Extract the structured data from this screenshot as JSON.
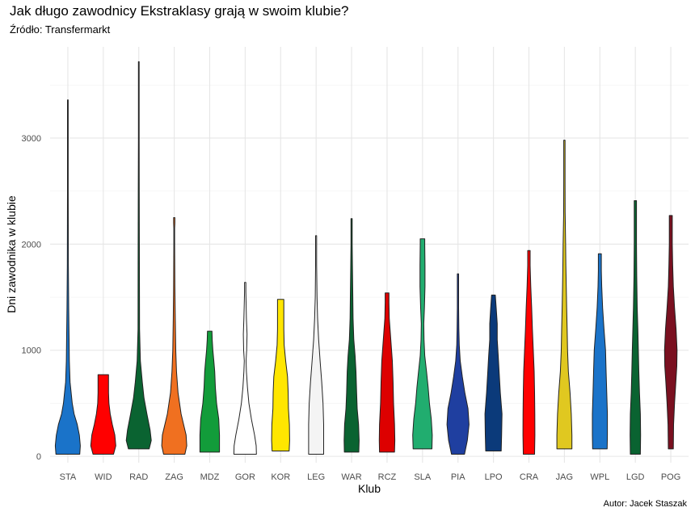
{
  "chart_data": {
    "type": "violin",
    "title": "Jak długo zawodnicy Ekstraklasy grają w swoim klubie?",
    "subtitle": "Źródło: Transfermarkt",
    "caption": "Autor: Jacek Staszak",
    "xlabel": "Klub",
    "ylabel": "Dni zawodnika w klubie",
    "ylim": [
      -60,
      3860
    ],
    "yticks": [
      0,
      1000,
      2000,
      3000
    ],
    "grid": true,
    "categories": [
      "STA",
      "WID",
      "RAD",
      "ZAG",
      "MDZ",
      "GOR",
      "KOR",
      "LEG",
      "WAR",
      "RCZ",
      "SLA",
      "PIA",
      "LPO",
      "CRA",
      "JAG",
      "WPL",
      "LGD",
      "POG"
    ],
    "series": [
      {
        "category": "STA",
        "color": "#1a73c9",
        "min": 20,
        "max": 3360,
        "profile": [
          [
            20,
            0.95
          ],
          [
            100,
            1.0
          ],
          [
            200,
            0.92
          ],
          [
            300,
            0.75
          ],
          [
            400,
            0.5
          ],
          [
            500,
            0.35
          ],
          [
            700,
            0.18
          ],
          [
            900,
            0.12
          ],
          [
            1100,
            0.1
          ],
          [
            1400,
            0.07
          ],
          [
            1800,
            0.04
          ],
          [
            2500,
            0.03
          ],
          [
            3000,
            0.03
          ],
          [
            3360,
            0.03
          ]
        ]
      },
      {
        "category": "WID",
        "color": "#ff0000",
        "min": 20,
        "max": 770,
        "profile": [
          [
            20,
            0.82
          ],
          [
            100,
            1.0
          ],
          [
            200,
            0.92
          ],
          [
            300,
            0.72
          ],
          [
            400,
            0.55
          ],
          [
            500,
            0.45
          ],
          [
            600,
            0.42
          ],
          [
            700,
            0.42
          ],
          [
            770,
            0.42
          ]
        ]
      },
      {
        "category": "RAD",
        "color": "#0a6331",
        "min": 70,
        "max": 3720,
        "profile": [
          [
            70,
            0.83
          ],
          [
            150,
            1.0
          ],
          [
            250,
            0.9
          ],
          [
            400,
            0.65
          ],
          [
            550,
            0.42
          ],
          [
            700,
            0.28
          ],
          [
            900,
            0.13
          ],
          [
            1200,
            0.06
          ],
          [
            1800,
            0.05
          ],
          [
            2500,
            0.04
          ],
          [
            3000,
            0.03
          ],
          [
            3720,
            0.03
          ]
        ]
      },
      {
        "category": "ZAG",
        "color": "#f07020",
        "min": 20,
        "max": 2250,
        "profile": [
          [
            20,
            0.85
          ],
          [
            100,
            1.0
          ],
          [
            200,
            0.95
          ],
          [
            300,
            0.75
          ],
          [
            400,
            0.55
          ],
          [
            600,
            0.3
          ],
          [
            800,
            0.18
          ],
          [
            1000,
            0.12
          ],
          [
            1300,
            0.08
          ],
          [
            1600,
            0.05
          ],
          [
            2000,
            0.03
          ],
          [
            2150,
            0.03
          ],
          [
            2200,
            0.05
          ],
          [
            2250,
            0.05
          ]
        ]
      },
      {
        "category": "MDZ",
        "color": "#129c3a",
        "min": 40,
        "max": 1180,
        "profile": [
          [
            40,
            0.78
          ],
          [
            200,
            0.78
          ],
          [
            350,
            0.72
          ],
          [
            500,
            0.55
          ],
          [
            650,
            0.45
          ],
          [
            800,
            0.4
          ],
          [
            900,
            0.33
          ],
          [
            1000,
            0.25
          ],
          [
            1100,
            0.2
          ],
          [
            1180,
            0.18
          ]
        ]
      },
      {
        "category": "GOR",
        "color": "#ffffff",
        "min": 20,
        "max": 1640,
        "profile": [
          [
            20,
            0.9
          ],
          [
            100,
            0.88
          ],
          [
            200,
            0.75
          ],
          [
            350,
            0.5
          ],
          [
            500,
            0.3
          ],
          [
            650,
            0.18
          ],
          [
            800,
            0.1
          ],
          [
            900,
            0.07
          ],
          [
            1000,
            0.12
          ],
          [
            1150,
            0.15
          ],
          [
            1300,
            0.1
          ],
          [
            1450,
            0.07
          ],
          [
            1550,
            0.05
          ],
          [
            1640,
            0.05
          ]
        ]
      },
      {
        "category": "KOR",
        "color": "#ffe600",
        "min": 50,
        "max": 1480,
        "profile": [
          [
            50,
            0.68
          ],
          [
            150,
            0.72
          ],
          [
            300,
            0.7
          ],
          [
            450,
            0.62
          ],
          [
            600,
            0.6
          ],
          [
            750,
            0.55
          ],
          [
            900,
            0.4
          ],
          [
            1050,
            0.28
          ],
          [
            1200,
            0.25
          ],
          [
            1350,
            0.25
          ],
          [
            1480,
            0.25
          ]
        ]
      },
      {
        "category": "LEG",
        "color": "#f4f4f4",
        "min": 20,
        "max": 2080,
        "profile": [
          [
            20,
            0.6
          ],
          [
            150,
            0.6
          ],
          [
            300,
            0.6
          ],
          [
            500,
            0.55
          ],
          [
            700,
            0.45
          ],
          [
            900,
            0.32
          ],
          [
            1100,
            0.2
          ],
          [
            1300,
            0.12
          ],
          [
            1500,
            0.07
          ],
          [
            1800,
            0.04
          ],
          [
            2080,
            0.04
          ]
        ]
      },
      {
        "category": "WAR",
        "color": "#0a6331",
        "min": 40,
        "max": 2240,
        "profile": [
          [
            40,
            0.58
          ],
          [
            150,
            0.6
          ],
          [
            300,
            0.56
          ],
          [
            450,
            0.45
          ],
          [
            600,
            0.4
          ],
          [
            800,
            0.35
          ],
          [
            950,
            0.28
          ],
          [
            1100,
            0.18
          ],
          [
            1300,
            0.12
          ],
          [
            1500,
            0.1
          ],
          [
            1800,
            0.07
          ],
          [
            2000,
            0.05
          ],
          [
            2240,
            0.05
          ]
        ]
      },
      {
        "category": "RCZ",
        "color": "#dd0000",
        "min": 40,
        "max": 1540,
        "profile": [
          [
            40,
            0.6
          ],
          [
            150,
            0.62
          ],
          [
            300,
            0.6
          ],
          [
            500,
            0.52
          ],
          [
            700,
            0.48
          ],
          [
            900,
            0.42
          ],
          [
            1100,
            0.3
          ],
          [
            1300,
            0.18
          ],
          [
            1450,
            0.15
          ],
          [
            1540,
            0.15
          ]
        ]
      },
      {
        "category": "SLA",
        "color": "#21ad6f",
        "min": 70,
        "max": 2050,
        "profile": [
          [
            70,
            0.75
          ],
          [
            200,
            0.78
          ],
          [
            350,
            0.7
          ],
          [
            500,
            0.55
          ],
          [
            650,
            0.45
          ],
          [
            800,
            0.32
          ],
          [
            950,
            0.18
          ],
          [
            1100,
            0.12
          ],
          [
            1250,
            0.1
          ],
          [
            1400,
            0.15
          ],
          [
            1600,
            0.2
          ],
          [
            1800,
            0.2
          ],
          [
            2000,
            0.18
          ],
          [
            2050,
            0.18
          ]
        ]
      },
      {
        "category": "PIA",
        "color": "#1f3fa0",
        "min": 20,
        "max": 1720,
        "profile": [
          [
            20,
            0.52
          ],
          [
            150,
            0.75
          ],
          [
            300,
            0.88
          ],
          [
            450,
            0.8
          ],
          [
            600,
            0.55
          ],
          [
            750,
            0.35
          ],
          [
            900,
            0.18
          ],
          [
            1050,
            0.1
          ],
          [
            1200,
            0.07
          ],
          [
            1400,
            0.05
          ],
          [
            1600,
            0.05
          ],
          [
            1720,
            0.05
          ]
        ]
      },
      {
        "category": "LPO",
        "color": "#0b3a7a",
        "min": 50,
        "max": 1520,
        "profile": [
          [
            50,
            0.62
          ],
          [
            200,
            0.65
          ],
          [
            400,
            0.68
          ],
          [
            600,
            0.55
          ],
          [
            800,
            0.45
          ],
          [
            950,
            0.38
          ],
          [
            1100,
            0.3
          ],
          [
            1250,
            0.3
          ],
          [
            1400,
            0.22
          ],
          [
            1520,
            0.15
          ]
        ]
      },
      {
        "category": "CRA",
        "color": "#ff0000",
        "min": 20,
        "max": 1940,
        "profile": [
          [
            20,
            0.45
          ],
          [
            200,
            0.48
          ],
          [
            400,
            0.47
          ],
          [
            600,
            0.45
          ],
          [
            800,
            0.42
          ],
          [
            1000,
            0.35
          ],
          [
            1200,
            0.28
          ],
          [
            1400,
            0.22
          ],
          [
            1600,
            0.15
          ],
          [
            1800,
            0.1
          ],
          [
            1940,
            0.1
          ]
        ]
      },
      {
        "category": "JAG",
        "color": "#e0c820",
        "min": 70,
        "max": 2980,
        "profile": [
          [
            70,
            0.6
          ],
          [
            200,
            0.6
          ],
          [
            400,
            0.55
          ],
          [
            600,
            0.45
          ],
          [
            800,
            0.32
          ],
          [
            1000,
            0.25
          ],
          [
            1200,
            0.22
          ],
          [
            1400,
            0.18
          ],
          [
            1600,
            0.15
          ],
          [
            1800,
            0.12
          ],
          [
            2000,
            0.1
          ],
          [
            2300,
            0.06
          ],
          [
            2600,
            0.05
          ],
          [
            2980,
            0.05
          ]
        ]
      },
      {
        "category": "WPL",
        "color": "#1a73c9",
        "min": 70,
        "max": 1910,
        "profile": [
          [
            70,
            0.58
          ],
          [
            200,
            0.6
          ],
          [
            400,
            0.6
          ],
          [
            600,
            0.55
          ],
          [
            800,
            0.5
          ],
          [
            1000,
            0.45
          ],
          [
            1200,
            0.33
          ],
          [
            1400,
            0.22
          ],
          [
            1600,
            0.15
          ],
          [
            1750,
            0.12
          ],
          [
            1910,
            0.12
          ]
        ]
      },
      {
        "category": "LGD",
        "color": "#0a6331",
        "min": 20,
        "max": 2410,
        "profile": [
          [
            20,
            0.4
          ],
          [
            200,
            0.42
          ],
          [
            400,
            0.4
          ],
          [
            600,
            0.33
          ],
          [
            800,
            0.28
          ],
          [
            1000,
            0.24
          ],
          [
            1200,
            0.2
          ],
          [
            1400,
            0.15
          ],
          [
            1700,
            0.11
          ],
          [
            2000,
            0.09
          ],
          [
            2200,
            0.09
          ],
          [
            2410,
            0.09
          ]
        ]
      },
      {
        "category": "POG",
        "color": "#7a1020",
        "min": 70,
        "max": 2270,
        "profile": [
          [
            70,
            0.2
          ],
          [
            300,
            0.22
          ],
          [
            500,
            0.3
          ],
          [
            700,
            0.4
          ],
          [
            850,
            0.48
          ],
          [
            1000,
            0.5
          ],
          [
            1200,
            0.42
          ],
          [
            1400,
            0.3
          ],
          [
            1600,
            0.2
          ],
          [
            1800,
            0.15
          ],
          [
            2000,
            0.12
          ],
          [
            2270,
            0.12
          ]
        ]
      }
    ]
  }
}
